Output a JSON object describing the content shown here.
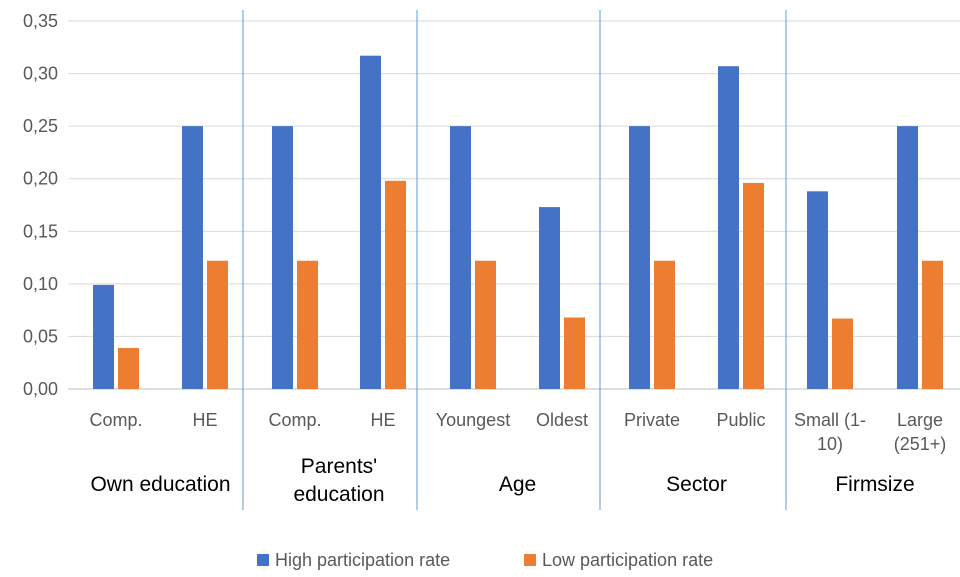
{
  "chart_data": {
    "type": "bar",
    "title": "",
    "xlabel": "",
    "ylabel": "",
    "ylim": [
      0,
      0.35
    ],
    "yticks": [
      "0,00",
      "0,05",
      "0,10",
      "0,15",
      "0,20",
      "0,25",
      "0,30",
      "0,35"
    ],
    "grid": true,
    "legend_position": "bottom",
    "groups": [
      {
        "label": [
          "Own education"
        ],
        "categories": [
          [
            "Comp."
          ],
          [
            "HE"
          ]
        ]
      },
      {
        "label": [
          "Parents'",
          "education"
        ],
        "categories": [
          [
            "Comp."
          ],
          [
            "HE"
          ]
        ]
      },
      {
        "label": [
          "Age"
        ],
        "categories": [
          [
            "Youngest"
          ],
          [
            "Oldest"
          ]
        ]
      },
      {
        "label": [
          "Sector"
        ],
        "categories": [
          [
            "Private"
          ],
          [
            "Public"
          ]
        ]
      },
      {
        "label": [
          "Firmsize"
        ],
        "categories": [
          [
            "Small (1-",
            "10)"
          ],
          [
            "Large",
            "(251+)"
          ]
        ]
      }
    ],
    "series": [
      {
        "name": "High participation rate",
        "color": "#4472C4",
        "values": [
          0.099,
          0.25,
          0.25,
          0.317,
          0.25,
          0.173,
          0.25,
          0.307,
          0.188,
          0.25
        ]
      },
      {
        "name": "Low participation rate",
        "color": "#ED7D31",
        "values": [
          0.039,
          0.122,
          0.122,
          0.198,
          0.122,
          0.068,
          0.122,
          0.196,
          0.067,
          0.122
        ]
      }
    ]
  }
}
